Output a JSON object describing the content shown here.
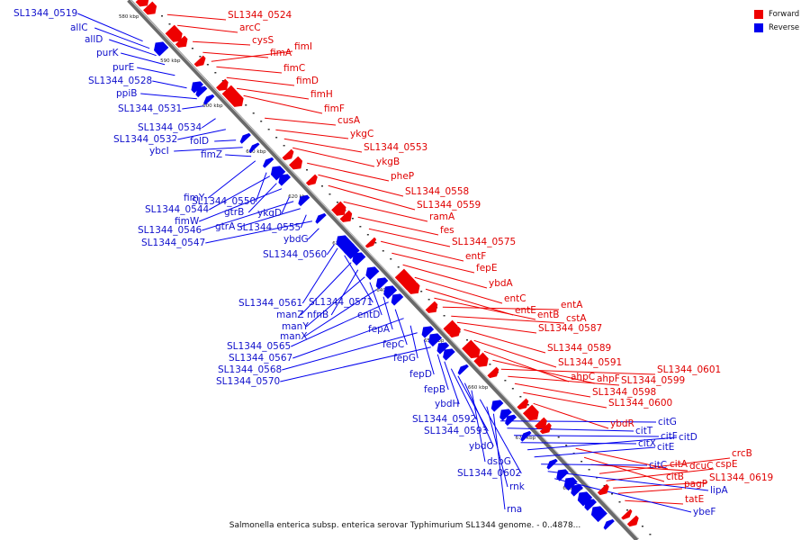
{
  "caption": "Salmonella enterica subsp. enterica serovar Typhimurium SL1344 genome. - 0..4878...",
  "legend": {
    "forward_label": "Forward",
    "reverse_label": "Reverse",
    "forward_color": "#ee0000",
    "reverse_color": "#0000ee"
  },
  "ticks": [
    "580 kbp",
    "590 kbp",
    "600 kbp",
    "610 kbp",
    "620 kbp",
    "630 kbp",
    "640 kbp",
    "650 kbp",
    "660 kbp",
    "670 kbp",
    "680 kbp"
  ],
  "forward_genes": [
    "SL1344_0524",
    "arcC",
    "cysS",
    "fimA",
    "fimI",
    "fimC",
    "fimD",
    "fimH",
    "fimF",
    "cusA",
    "ykgC",
    "SL1344_0553",
    "ykgB",
    "pheP",
    "SL1344_0558",
    "SL1344_0559",
    "ramA",
    "fes",
    "SL1344_0575",
    "entF",
    "fepE",
    "ybdA",
    "entC",
    "entE",
    "entB",
    "entA",
    "cstA",
    "SL1344_0587",
    "SL1344_0589",
    "SL1344_0591",
    "ahpC",
    "ahpF",
    "SL1344_0601",
    "SL1344_0599",
    "SL1344_0598",
    "SL1344_0600",
    "ybdR",
    "citA",
    "citB",
    "dcuC",
    "crcB",
    "cspE",
    "SL1344_0619",
    "pagP",
    "tatE"
  ],
  "reverse_genes": [
    "SL1344_0519",
    "allC",
    "allD",
    "purK",
    "purE",
    "SL1344_0528",
    "ppiB",
    "SL1344_0531",
    "SL1344_0534",
    "SL1344_0532",
    "folD",
    "ybcI",
    "fimZ",
    "fimY",
    "SL1344_0550",
    "SL1344_0544",
    "gtrB",
    "fimW",
    "ykgD",
    "SL1344_0546",
    "gtrA",
    "SL1344_0555",
    "SL1344_0547",
    "ybdG",
    "SL1344_0560",
    "SL1344_0561",
    "SL1344_0571",
    "manZ",
    "nfnB",
    "manY",
    "entD",
    "manX",
    "fepA",
    "SL1344_0565",
    "fepC",
    "SL1344_0567",
    "fepG",
    "SL1344_0568",
    "fepD",
    "SL1344_0570",
    "fepB",
    "ybdH",
    "SL1344_0592",
    "SL1344_0593",
    "ybdO",
    "dsbG",
    "SL1344_0602",
    "rnk",
    "rna",
    "citG",
    "citT",
    "citF",
    "citX",
    "citD",
    "citE",
    "citC",
    "lipA",
    "ybeF"
  ]
}
